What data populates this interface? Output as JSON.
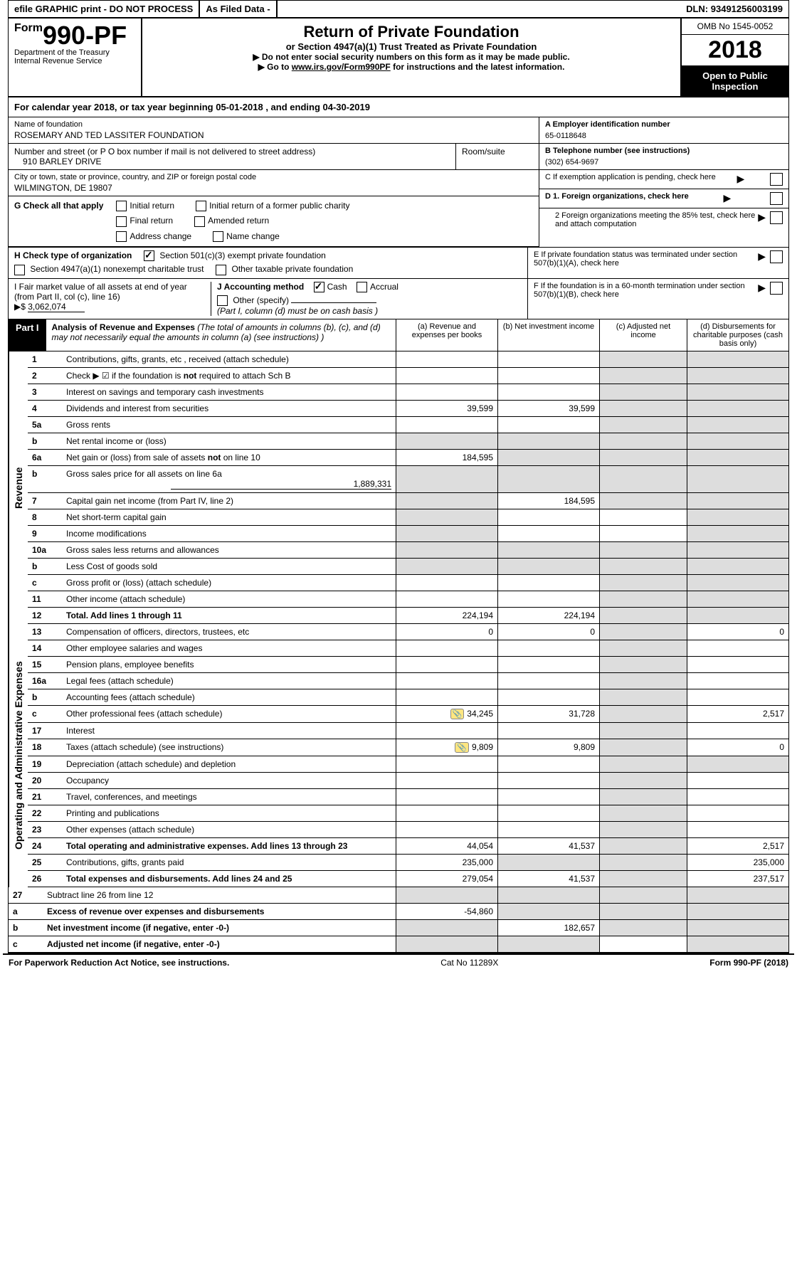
{
  "top_bar": {
    "efile": "efile GRAPHIC print - DO NOT PROCESS",
    "as_filed": "As Filed Data -",
    "dln_label": "DLN:",
    "dln": "93491256003199"
  },
  "header": {
    "form_prefix": "Form",
    "form_number": "990-PF",
    "dept": "Department of the Treasury",
    "irs": "Internal Revenue Service",
    "title": "Return of Private Foundation",
    "subtitle": "or Section 4947(a)(1) Trust Treated as Private Foundation",
    "inst1": "▶ Do not enter social security numbers on this form as it may be made public.",
    "inst2_pre": "▶ Go to ",
    "inst2_link": "www.irs.gov/Form990PF",
    "inst2_post": " for instructions and the latest information.",
    "omb": "OMB No 1545-0052",
    "year": "2018",
    "public": "Open to Public Inspection"
  },
  "cal_year": "For calendar year 2018, or tax year beginning 05-01-2018          , and ending 04-30-2019",
  "name_label": "Name of foundation",
  "name": "ROSEMARY AND TED LASSITER FOUNDATION",
  "addr_label": "Number and street (or P O  box number if mail is not delivered to street address)",
  "room_label": "Room/suite",
  "addr": "910 BARLEY DRIVE",
  "city_label": "City or town, state or province, country, and ZIP or foreign postal code",
  "city": "WILMINGTON, DE  19807",
  "ein_label": "A Employer identification number",
  "ein": "65-0118648",
  "tel_label": "B Telephone number (see instructions)",
  "tel": "(302) 654-9697",
  "c_label": "C  If exemption application is pending, check here",
  "g_label": "G Check all that apply",
  "g_opts": {
    "initial": "Initial return",
    "initial_former": "Initial return of a former public charity",
    "final": "Final return",
    "amended": "Amended return",
    "addr_change": "Address change",
    "name_change": "Name change"
  },
  "d1_label": "D 1. Foreign organizations, check here",
  "d2_label": "2  Foreign organizations meeting the 85% test, check here and attach computation",
  "h_label": "H Check type of organization",
  "h_501": "Section 501(c)(3) exempt private foundation",
  "h_4947": "Section 4947(a)(1) nonexempt charitable trust",
  "h_other": "Other taxable private foundation",
  "e_label": "E  If private foundation status was terminated under section 507(b)(1)(A), check here",
  "i_label": "I Fair market value of all assets at end of year (from Part II, col  (c), line 16)",
  "i_val_pre": "▶$ ",
  "i_val": "3,062,074",
  "j_label": "J Accounting method",
  "j_cash": "Cash",
  "j_accrual": "Accrual",
  "j_other": "Other (specify)",
  "j_note": "(Part I, column (d) must be on cash basis )",
  "f_label": "F  If the foundation is in a 60-month termination under section 507(b)(1)(B), check here",
  "part1": {
    "label": "Part I",
    "title": "Analysis of Revenue and Expenses",
    "subtitle": "(The total of amounts in columns (b), (c), and (d) may not necessarily equal the amounts in column (a) (see instructions) )",
    "col_a": "(a)    Revenue and expenses per books",
    "col_b": "(b)   Net investment income",
    "col_c": "(c)   Adjusted net income",
    "col_d": "(d)   Disbursements for charitable purposes (cash basis only)"
  },
  "side_revenue": "Revenue",
  "side_expenses": "Operating and Administrative Expenses",
  "rows": {
    "1": {
      "num": "1",
      "desc": "Contributions, gifts, grants, etc , received (attach schedule)"
    },
    "2": {
      "num": "2",
      "desc": "Check ▶ ☑ if the foundation is not required to attach Sch  B"
    },
    "3": {
      "num": "3",
      "desc": "Interest on savings and temporary cash investments"
    },
    "4": {
      "num": "4",
      "desc": "Dividends and interest from securities",
      "a": "39,599",
      "b": "39,599"
    },
    "5a": {
      "num": "5a",
      "desc": "Gross rents"
    },
    "5b": {
      "num": "b",
      "desc": "Net rental income or (loss)"
    },
    "6a": {
      "num": "6a",
      "desc": "Net gain or (loss) from sale of assets not on line 10",
      "a": "184,595"
    },
    "6b": {
      "num": "b",
      "desc": "Gross sales price for all assets on line 6a",
      "sub": "1,889,331"
    },
    "7": {
      "num": "7",
      "desc": "Capital gain net income (from Part IV, line 2)",
      "b": "184,595"
    },
    "8": {
      "num": "8",
      "desc": "Net short-term capital gain"
    },
    "9": {
      "num": "9",
      "desc": "Income modifications"
    },
    "10a": {
      "num": "10a",
      "desc": "Gross sales less returns and allowances"
    },
    "10b": {
      "num": "b",
      "desc": "Less  Cost of goods sold"
    },
    "10c": {
      "num": "c",
      "desc": "Gross profit or (loss) (attach schedule)"
    },
    "11": {
      "num": "11",
      "desc": "Other income (attach schedule)"
    },
    "12": {
      "num": "12",
      "desc": "Total. Add lines 1 through 11",
      "a": "224,194",
      "b": "224,194"
    },
    "13": {
      "num": "13",
      "desc": "Compensation of officers, directors, trustees, etc",
      "a": "0",
      "b": "0",
      "d": "0"
    },
    "14": {
      "num": "14",
      "desc": "Other employee salaries and wages"
    },
    "15": {
      "num": "15",
      "desc": "Pension plans, employee benefits"
    },
    "16a": {
      "num": "16a",
      "desc": "Legal fees (attach schedule)"
    },
    "16b": {
      "num": "b",
      "desc": "Accounting fees (attach schedule)"
    },
    "16c": {
      "num": "c",
      "desc": "Other professional fees (attach schedule)",
      "a": "34,245",
      "b": "31,728",
      "d": "2,517",
      "icon": true
    },
    "17": {
      "num": "17",
      "desc": "Interest"
    },
    "18": {
      "num": "18",
      "desc": "Taxes (attach schedule) (see instructions)",
      "a": "9,809",
      "b": "9,809",
      "d": "0",
      "icon": true
    },
    "19": {
      "num": "19",
      "desc": "Depreciation (attach schedule) and depletion"
    },
    "20": {
      "num": "20",
      "desc": "Occupancy"
    },
    "21": {
      "num": "21",
      "desc": "Travel, conferences, and meetings"
    },
    "22": {
      "num": "22",
      "desc": "Printing and publications"
    },
    "23": {
      "num": "23",
      "desc": "Other expenses (attach schedule)"
    },
    "24": {
      "num": "24",
      "desc": "Total operating and administrative expenses. Add lines 13 through 23",
      "a": "44,054",
      "b": "41,537",
      "d": "2,517"
    },
    "25": {
      "num": "25",
      "desc": "Contributions, gifts, grants paid",
      "a": "235,000",
      "d": "235,000"
    },
    "26": {
      "num": "26",
      "desc": "Total expenses and disbursements. Add lines 24 and 25",
      "a": "279,054",
      "b": "41,537",
      "d": "237,517"
    },
    "27": {
      "num": "27",
      "desc": "Subtract line 26 from line 12"
    },
    "27a": {
      "num": "a",
      "desc": "Excess of revenue over expenses and disbursements",
      "a": "-54,860"
    },
    "27b": {
      "num": "b",
      "desc": "Net investment income (if negative, enter -0-)",
      "b": "182,657"
    },
    "27c": {
      "num": "c",
      "desc": "Adjusted net income (if negative, enter -0-)"
    }
  },
  "footer": {
    "left": "For Paperwork Reduction Act Notice, see instructions.",
    "mid": "Cat No  11289X",
    "right": "Form 990-PF (2018)"
  }
}
